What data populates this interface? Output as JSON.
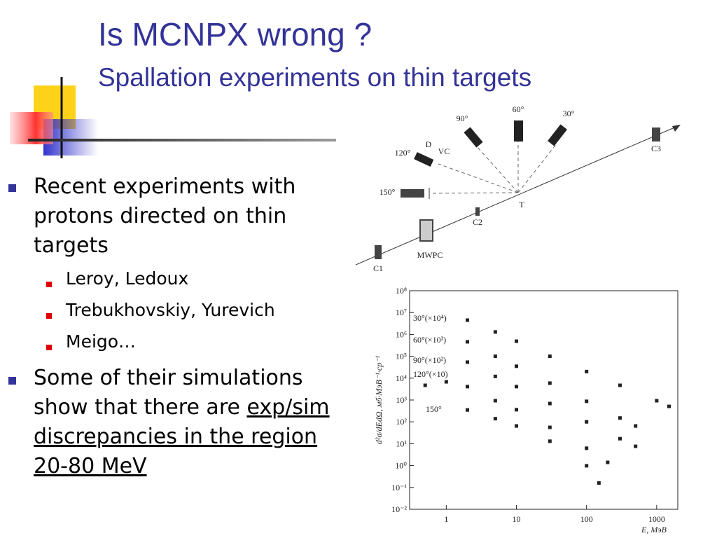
{
  "header": {
    "title": "Is MCNPX wrong ?",
    "subtitle": "Spallation experiments on thin targets"
  },
  "bullets": [
    {
      "text": "Recent experiments with protons directed on thin targets",
      "sub": [
        "Leroy, Ledoux",
        "Trebukhovskiy, Yurevich",
        "Meigo…"
      ]
    },
    {
      "text": "Some of their simulations show that there are ",
      "underlined": "exp/sim discrepancies in the region 20-80 MeV"
    }
  ],
  "diagram": {
    "labels": [
      "60°",
      "30°",
      "90°",
      "D",
      "VC",
      "120°",
      "150°",
      "T",
      "C2",
      "C3",
      "MWPC",
      "C1"
    ]
  },
  "chart_data": {
    "type": "scatter",
    "log_x": true,
    "log_y": true,
    "xlabel": "E, МэВ",
    "ylabel": "d²σ/dEdΩ, мб·МэВ⁻¹·ср⁻¹",
    "xlim": [
      0.3,
      2000
    ],
    "ylim": [
      0.01,
      100000000
    ],
    "xticks": [
      1,
      10,
      100,
      1000
    ],
    "yticks": [
      {
        "value": 0.01,
        "label": "10⁻²"
      },
      {
        "value": 0.1,
        "label": "10⁻¹"
      },
      {
        "value": 1,
        "label": "10⁰"
      },
      {
        "value": 10,
        "label": "10¹"
      },
      {
        "value": 100,
        "label": "10²"
      },
      {
        "value": 1000,
        "label": "10³"
      },
      {
        "value": 10000,
        "label": "10⁴"
      },
      {
        "value": 100000,
        "label": "10⁵"
      },
      {
        "value": 1000000,
        "label": "10⁶"
      },
      {
        "value": 10000000,
        "label": "10⁷"
      },
      {
        "value": 100000000,
        "label": "10⁸"
      }
    ],
    "series": [
      {
        "name": "30°(×10⁴)",
        "color": "#222222",
        "x": [
          2,
          5,
          10,
          30,
          100,
          300,
          1000,
          1500
        ],
        "values": [
          4500000,
          1300000,
          490000,
          100000,
          20000,
          4700,
          930,
          510
        ]
      },
      {
        "name": "60°(×10³)",
        "color": "#222222",
        "x": [
          2,
          5,
          10,
          30,
          100,
          300,
          500
        ],
        "values": [
          460000,
          100000,
          35000,
          5900,
          870,
          150,
          65
        ]
      },
      {
        "name": "90°(×10²)",
        "color": "#222222",
        "x": [
          2,
          5,
          10,
          30,
          100,
          300,
          500
        ],
        "values": [
          54000,
          12000,
          4100,
          690,
          100,
          17,
          7.6
        ]
      },
      {
        "name": "120°(×10)",
        "color": "#222222",
        "x": [
          0.5,
          1,
          2,
          5,
          10,
          30,
          100,
          200
        ],
        "values": [
          4700,
          6800,
          4100,
          930,
          360,
          56,
          6.2,
          1.4
        ]
      },
      {
        "name": "150°",
        "color": "#222222",
        "x": [
          2,
          5,
          10,
          30,
          100,
          150
        ],
        "values": [
          350,
          140,
          65,
          13,
          0.98,
          0.16
        ]
      }
    ]
  }
}
